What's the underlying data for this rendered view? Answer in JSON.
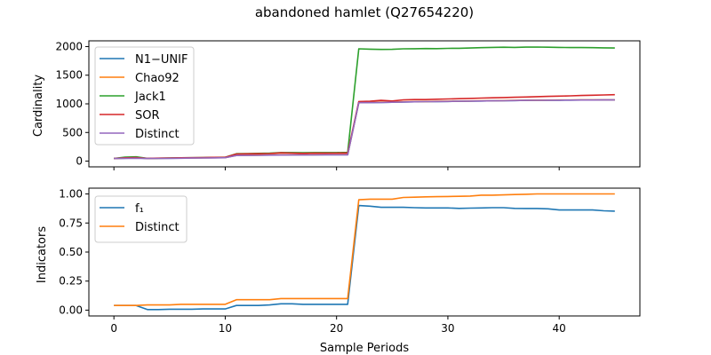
{
  "figure": {
    "title": "abandoned hamlet (Q27654220)",
    "xlabel": "Sample Periods"
  },
  "chart_data": [
    {
      "type": "line",
      "ylabel": "Cardinality",
      "xlim": [
        -2.25,
        47.25
      ],
      "ylim": [
        -100,
        2100
      ],
      "xticks": [
        0,
        10,
        20,
        30,
        40
      ],
      "yticks": [
        0,
        500,
        1000,
        1500,
        2000
      ],
      "ytick_labels": [
        "0",
        "500",
        "1000",
        "1500",
        "2000"
      ],
      "grid": false,
      "legend_position": "upper-left",
      "x": [
        0,
        1,
        2,
        3,
        4,
        5,
        6,
        7,
        8,
        9,
        10,
        11,
        12,
        13,
        14,
        15,
        16,
        17,
        18,
        19,
        20,
        21,
        22,
        23,
        24,
        25,
        26,
        27,
        28,
        29,
        30,
        31,
        32,
        33,
        34,
        35,
        36,
        37,
        38,
        39,
        40,
        41,
        42,
        43,
        44,
        45
      ],
      "series": [
        {
          "name": "N1−UNIF",
          "color": "#1f77b4",
          "values": [
            45,
            50,
            55,
            45,
            48,
            50,
            52,
            55,
            58,
            60,
            62,
            100,
            102,
            104,
            106,
            108,
            110,
            110,
            111,
            112,
            112,
            113,
            1020,
            1022,
            1025,
            1028,
            1032,
            1035,
            1038,
            1040,
            1042,
            1045,
            1048,
            1050,
            1052,
            1055,
            1058,
            1060,
            1062,
            1063,
            1064,
            1065,
            1066,
            1067,
            1068,
            1068
          ]
        },
        {
          "name": "Chao92",
          "color": "#ff7f0e",
          "values": [
            45,
            52,
            58,
            48,
            50,
            52,
            54,
            56,
            58,
            60,
            62,
            100,
            103,
            105,
            107,
            110,
            112,
            112,
            113,
            114,
            115,
            116,
            1025,
            1028,
            1030,
            1032,
            1035,
            1038,
            1040,
            1043,
            1045,
            1047,
            1050,
            1052,
            1054,
            1057,
            1060,
            1062,
            1064,
            1065,
            1066,
            1067,
            1068,
            1069,
            1070,
            1070
          ]
        },
        {
          "name": "Jack1",
          "color": "#2ca02c",
          "values": [
            45,
            70,
            75,
            48,
            50,
            55,
            58,
            60,
            62,
            65,
            68,
            130,
            132,
            135,
            138,
            150,
            150,
            148,
            150,
            150,
            150,
            152,
            1960,
            1955,
            1950,
            1952,
            1960,
            1962,
            1965,
            1963,
            1968,
            1970,
            1975,
            1980,
            1985,
            1988,
            1985,
            1990,
            1992,
            1988,
            1985,
            1983,
            1982,
            1980,
            1978,
            1975
          ]
        },
        {
          "name": "SOR",
          "color": "#d62728",
          "values": [
            45,
            58,
            62,
            48,
            52,
            55,
            58,
            60,
            62,
            65,
            68,
            125,
            128,
            130,
            132,
            145,
            140,
            135,
            140,
            138,
            140,
            142,
            1040,
            1045,
            1060,
            1050,
            1070,
            1075,
            1075,
            1080,
            1085,
            1090,
            1095,
            1100,
            1105,
            1110,
            1115,
            1120,
            1125,
            1130,
            1135,
            1140,
            1145,
            1150,
            1155,
            1160
          ]
        },
        {
          "name": "Distinct",
          "color": "#9467bd",
          "values": [
            45,
            48,
            50,
            45,
            47,
            49,
            51,
            53,
            55,
            57,
            59,
            98,
            100,
            102,
            104,
            106,
            108,
            108,
            109,
            110,
            110,
            111,
            1020,
            1022,
            1025,
            1028,
            1032,
            1035,
            1038,
            1040,
            1042,
            1045,
            1048,
            1050,
            1052,
            1055,
            1058,
            1060,
            1062,
            1063,
            1064,
            1065,
            1066,
            1067,
            1068,
            1068
          ]
        }
      ]
    },
    {
      "type": "line",
      "ylabel": "Indicators",
      "xlim": [
        -2.25,
        47.25
      ],
      "ylim": [
        -0.05,
        1.05
      ],
      "xticks": [
        0,
        10,
        20,
        30,
        40
      ],
      "xtick_labels": [
        "0",
        "10",
        "20",
        "30",
        "40"
      ],
      "yticks": [
        0,
        0.25,
        0.5,
        0.75,
        1.0
      ],
      "ytick_labels": [
        "0.00",
        "0.25",
        "0.50",
        "0.75",
        "1.00"
      ],
      "grid": false,
      "legend_position": "upper-left",
      "x": [
        0,
        1,
        2,
        3,
        4,
        5,
        6,
        7,
        8,
        9,
        10,
        11,
        12,
        13,
        14,
        15,
        16,
        17,
        18,
        19,
        20,
        21,
        22,
        23,
        24,
        25,
        26,
        27,
        28,
        29,
        30,
        31,
        32,
        33,
        34,
        35,
        36,
        37,
        38,
        39,
        40,
        41,
        42,
        43,
        44,
        45
      ],
      "series": [
        {
          "name": "f₁",
          "color": "#1f77b4",
          "values": [
            0.04,
            0.04,
            0.04,
            0.005,
            0.005,
            0.008,
            0.008,
            0.008,
            0.01,
            0.01,
            0.01,
            0.04,
            0.04,
            0.04,
            0.045,
            0.055,
            0.055,
            0.05,
            0.05,
            0.05,
            0.05,
            0.05,
            0.9,
            0.895,
            0.885,
            0.885,
            0.885,
            0.882,
            0.88,
            0.88,
            0.88,
            0.876,
            0.878,
            0.88,
            0.882,
            0.882,
            0.876,
            0.875,
            0.875,
            0.872,
            0.862,
            0.862,
            0.862,
            0.862,
            0.855,
            0.852
          ]
        },
        {
          "name": "Distinct",
          "color": "#ff7f0e",
          "values": [
            0.04,
            0.04,
            0.04,
            0.045,
            0.045,
            0.045,
            0.05,
            0.05,
            0.05,
            0.05,
            0.05,
            0.09,
            0.09,
            0.09,
            0.09,
            0.1,
            0.1,
            0.1,
            0.1,
            0.1,
            0.1,
            0.1,
            0.95,
            0.955,
            0.955,
            0.955,
            0.97,
            0.972,
            0.975,
            0.977,
            0.978,
            0.98,
            0.982,
            0.99,
            0.99,
            0.992,
            0.995,
            0.997,
            1.0,
            1.0,
            1.0,
            1.0,
            1.0,
            1.0,
            1.0,
            1.0
          ]
        }
      ]
    }
  ]
}
